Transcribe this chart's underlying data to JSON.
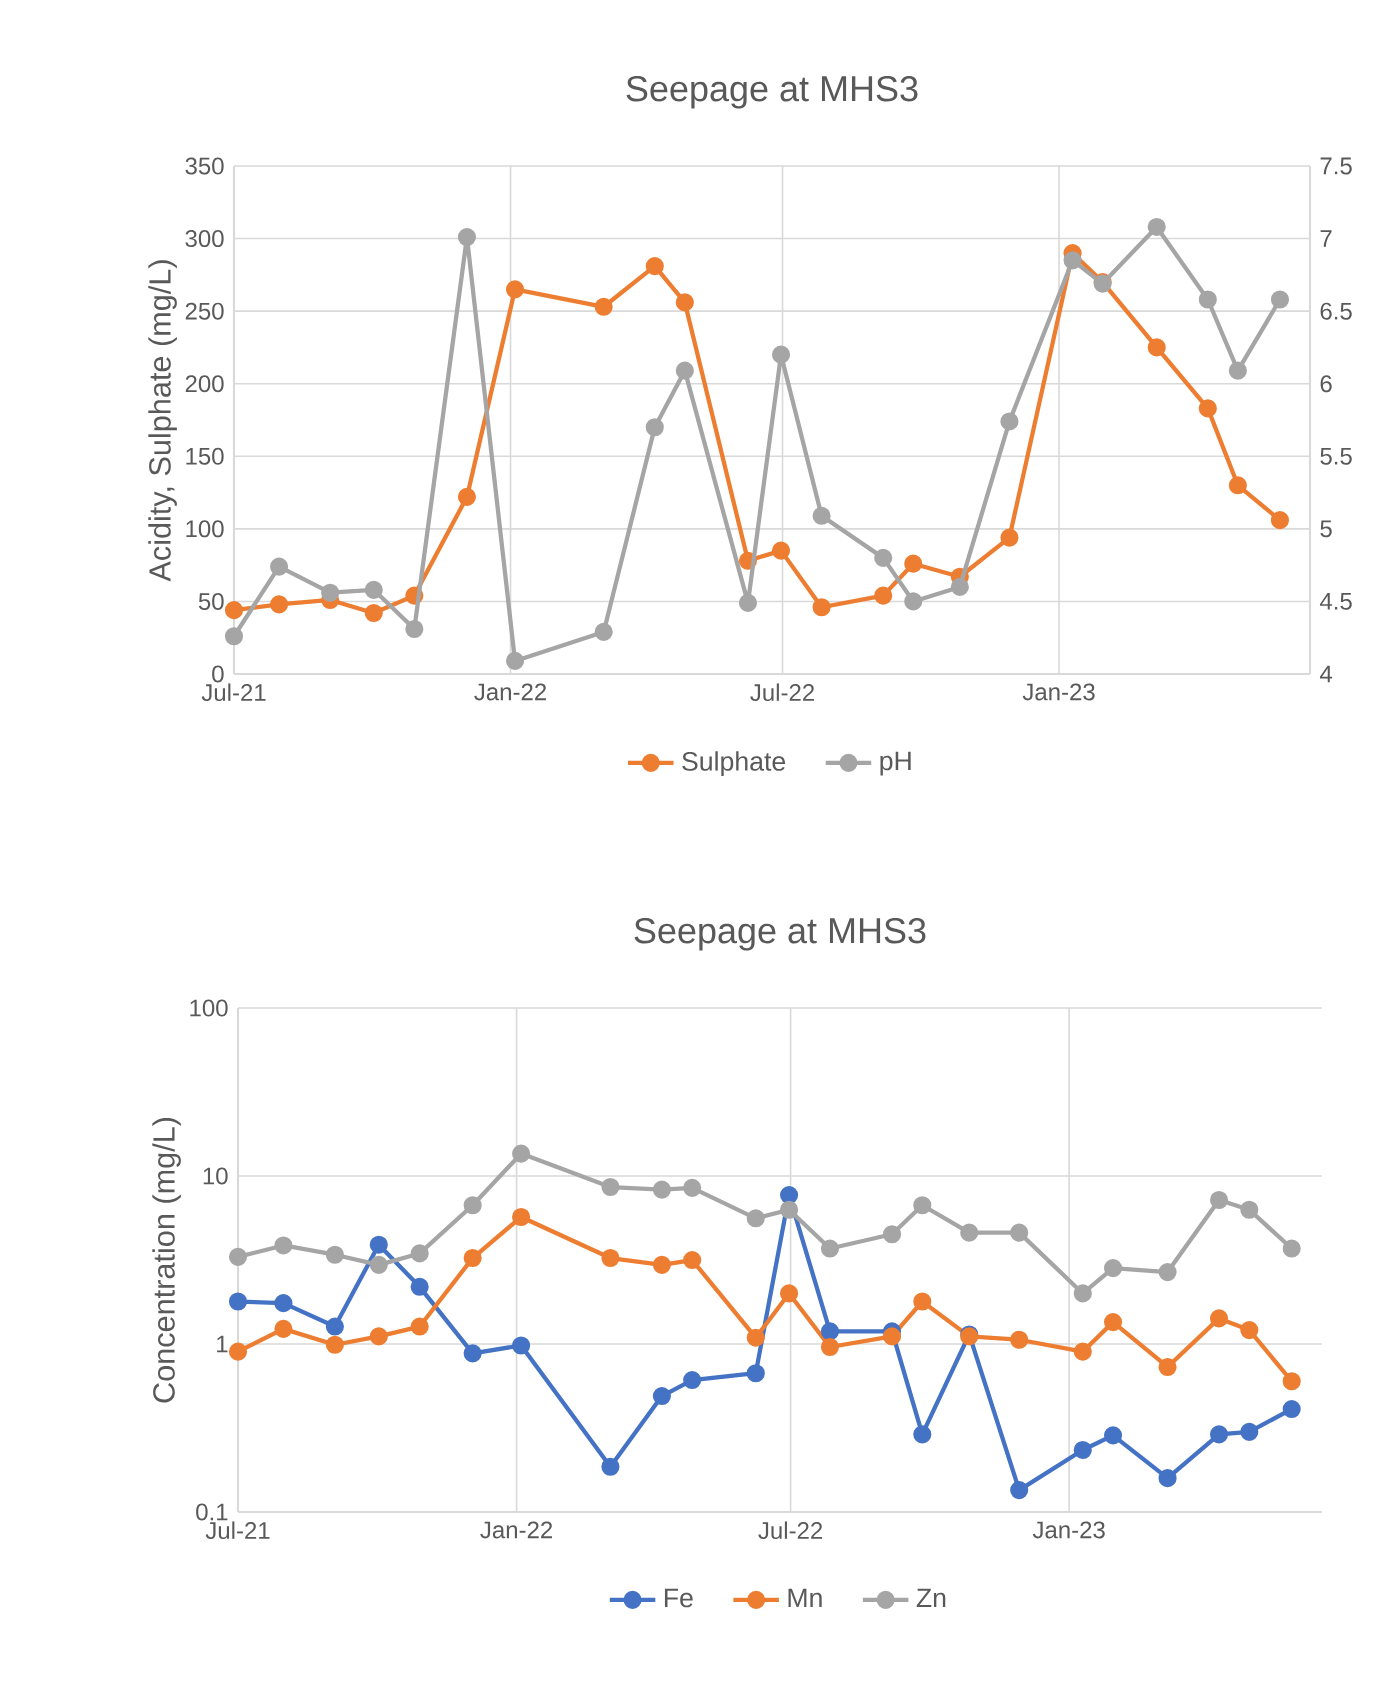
{
  "chart_data": [
    {
      "type": "line",
      "title": "Seepage at MHS3",
      "ylabel": "Acidity, Sulphate (mg/L)",
      "x": [
        "2021-07-01",
        "2021-07-31",
        "2021-09-03",
        "2021-10-02",
        "2021-10-29",
        "2021-12-03",
        "2022-01-04",
        "2022-03-04",
        "2022-04-07",
        "2022-04-27",
        "2022-06-08",
        "2022-06-30",
        "2022-07-27",
        "2022-09-06",
        "2022-09-26",
        "2022-10-27",
        "2022-11-29",
        "2023-01-10",
        "2023-01-30",
        "2023-03-07",
        "2023-04-10",
        "2023-04-30",
        "2023-05-28"
      ],
      "xlim": [
        "2021-07-01",
        "2023-06-17"
      ],
      "xticks": [
        {
          "value": "2021-07-01",
          "label": "Jul-21"
        },
        {
          "value": "2022-01-01",
          "label": "Jan-22"
        },
        {
          "value": "2022-07-01",
          "label": "Jul-22"
        },
        {
          "value": "2023-01-01",
          "label": "Jan-23"
        }
      ],
      "ylim": [
        0,
        350
      ],
      "yticks": [
        0,
        50,
        100,
        150,
        200,
        250,
        300,
        350
      ],
      "y2lim": [
        4,
        7.5
      ],
      "y2ticks": [
        4,
        4.5,
        5,
        5.5,
        6,
        6.5,
        7,
        7.5
      ],
      "grid": true,
      "legend": "bottom",
      "marker": "circle",
      "series": [
        {
          "name": "Sulphate",
          "color": "#ed7d31",
          "values": [
            44,
            48,
            51,
            42,
            54,
            122,
            265,
            253,
            281,
            256,
            78,
            85,
            46,
            54,
            76,
            67,
            94,
            290,
            270,
            225,
            183,
            130,
            106
          ]
        },
        {
          "name": "pH",
          "color": "#a5a5a5",
          "axis": "y2",
          "values": [
            4.26,
            4.74,
            4.56,
            4.58,
            4.31,
            7.01,
            4.09,
            4.29,
            5.7,
            6.09,
            4.49,
            6.2,
            5.09,
            4.8,
            4.5,
            4.6,
            5.74,
            6.85,
            6.69,
            7.08,
            6.58,
            6.09,
            6.58
          ]
        }
      ]
    },
    {
      "type": "line",
      "title": "Seepage at MHS3",
      "ylabel": "Concentration (mg/L)",
      "x": [
        "2021-07-01",
        "2021-07-31",
        "2021-09-03",
        "2021-10-02",
        "2021-10-29",
        "2021-12-03",
        "2022-01-04",
        "2022-03-04",
        "2022-04-07",
        "2022-04-27",
        "2022-06-08",
        "2022-06-30",
        "2022-07-27",
        "2022-09-06",
        "2022-09-26",
        "2022-10-27",
        "2022-11-29",
        "2023-01-10",
        "2023-01-30",
        "2023-03-07",
        "2023-04-10",
        "2023-04-30",
        "2023-05-28"
      ],
      "xlim": [
        "2021-07-01",
        "2023-06-17"
      ],
      "xticks": [
        {
          "value": "2021-07-01",
          "label": "Jul-21"
        },
        {
          "value": "2022-01-01",
          "label": "Jan-22"
        },
        {
          "value": "2022-07-01",
          "label": "Jul-22"
        },
        {
          "value": "2023-01-01",
          "label": "Jan-23"
        }
      ],
      "log": true,
      "ylim": [
        0.1,
        100
      ],
      "yticks": [
        0.1,
        1,
        10,
        100
      ],
      "grid": true,
      "legend": "bottom",
      "marker": "circle",
      "series": [
        {
          "name": "Fe",
          "color": "#4472c4",
          "values": [
            1.79,
            1.75,
            1.27,
            3.9,
            2.19,
            0.88,
            0.98,
            0.186,
            0.49,
            0.61,
            0.67,
            7.7,
            1.19,
            1.19,
            0.29,
            1.14,
            0.135,
            0.234,
            0.286,
            0.159,
            0.29,
            0.3,
            0.41
          ]
        },
        {
          "name": "Mn",
          "color": "#ed7d31",
          "values": [
            0.9,
            1.23,
            0.99,
            1.11,
            1.27,
            3.25,
            5.7,
            3.25,
            2.96,
            3.16,
            1.09,
            2.0,
            0.96,
            1.11,
            1.79,
            1.11,
            1.06,
            0.9,
            1.35,
            0.73,
            1.42,
            1.21,
            0.6
          ]
        },
        {
          "name": "Zn",
          "color": "#a5a5a5",
          "values": [
            3.3,
            3.86,
            3.4,
            2.96,
            3.46,
            6.7,
            13.6,
            8.6,
            8.3,
            8.5,
            5.6,
            6.3,
            3.7,
            4.5,
            6.7,
            4.6,
            4.6,
            2.0,
            2.83,
            2.68,
            7.2,
            6.3,
            3.7
          ]
        }
      ]
    }
  ]
}
